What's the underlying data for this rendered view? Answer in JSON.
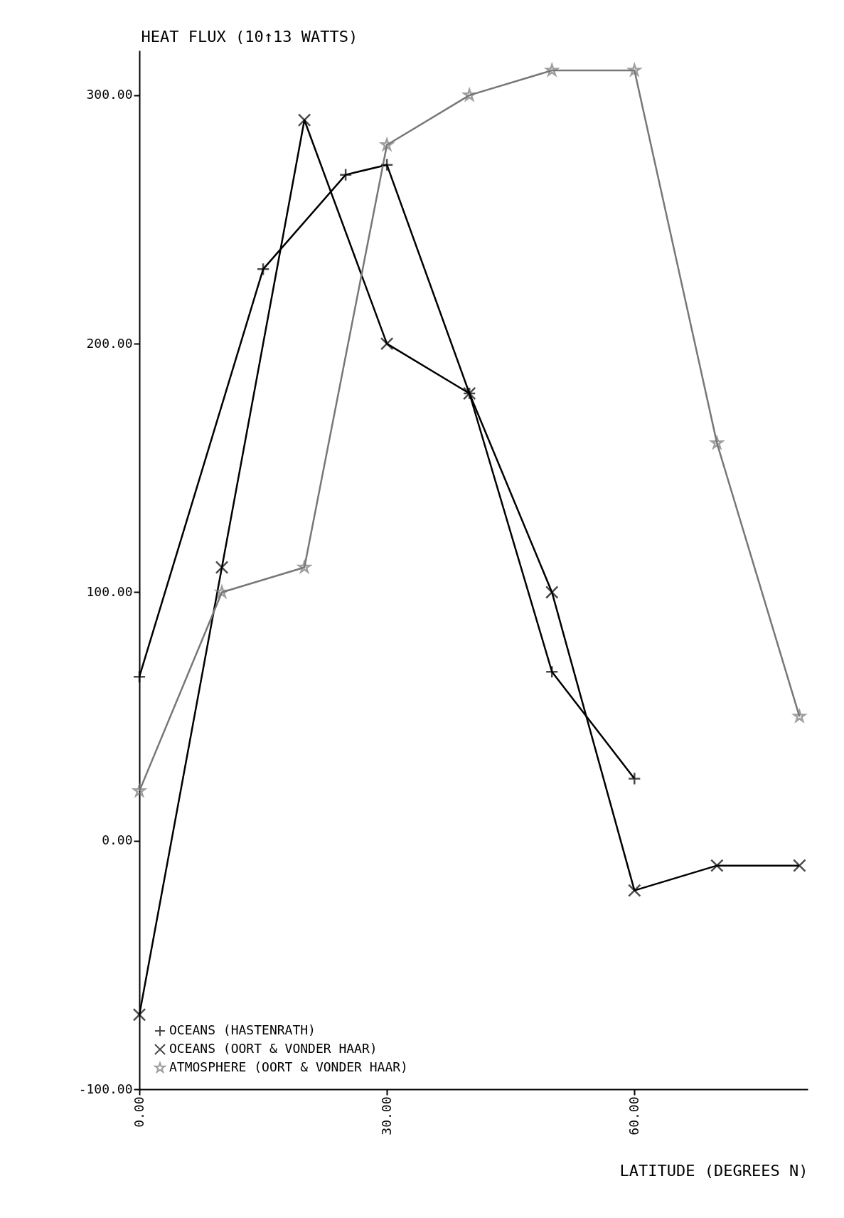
{
  "chart_data": {
    "type": "line",
    "xlabel": "LATITUDE (DEGREES N)",
    "ylabel": "HEAT FLUX (10↑13 WATTS)",
    "xlim": [
      0,
      81
    ],
    "xticks": [
      {
        "value": 0,
        "label": "0.00"
      },
      {
        "value": 30,
        "label": "30.00"
      },
      {
        "value": 60,
        "label": "60.00"
      }
    ],
    "ylim": [
      -100,
      318
    ],
    "yticks": [
      {
        "value": -100,
        "label": "-100.00"
      },
      {
        "value": 0,
        "label": "0.00"
      },
      {
        "value": 100,
        "label": "100.00"
      },
      {
        "value": 200,
        "label": "200.00"
      },
      {
        "value": 300,
        "label": "300.00"
      }
    ],
    "grid": false,
    "legend": "bottom left",
    "series": [
      {
        "name": "OCEANS (HASTENRATH)",
        "color": "#000000",
        "marker": "cross",
        "x": [
          0,
          15,
          25,
          30,
          40,
          50,
          60
        ],
        "values": [
          66,
          230,
          268,
          272,
          180,
          68,
          25
        ]
      },
      {
        "name": "OCEANS (OORT & VONDER HAAR)",
        "color": "#000000",
        "marker": "x",
        "x": [
          0,
          10,
          20,
          30,
          40,
          50,
          60,
          70,
          80
        ],
        "values": [
          -70,
          110,
          290,
          200,
          180,
          100,
          -20,
          -10,
          -10
        ]
      },
      {
        "name": "ATMOSPHERE (OORT & VONDER HAAR)",
        "color": "#777777",
        "marker": "star",
        "x": [
          0,
          10,
          20,
          30,
          40,
          50,
          60,
          70,
          80
        ],
        "values": [
          20,
          100,
          110,
          280,
          300,
          310,
          310,
          160,
          50
        ]
      }
    ]
  }
}
